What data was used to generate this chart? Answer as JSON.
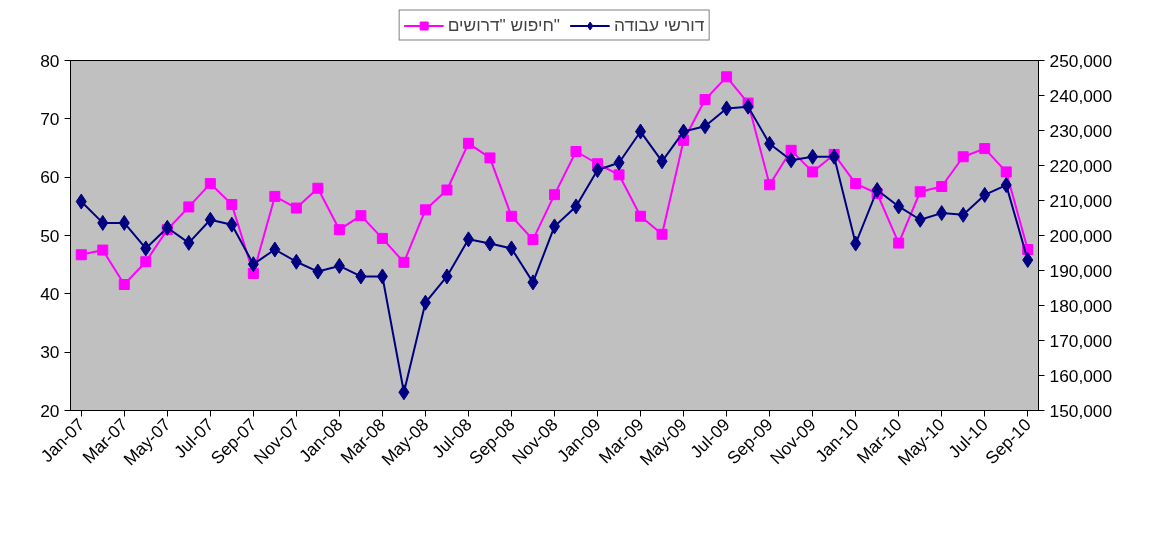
{
  "chart_data": {
    "type": "line",
    "categories": [
      "Jan-07",
      null,
      "Mar-07",
      null,
      "May-07",
      null,
      "Jul-07",
      null,
      "Sep-07",
      null,
      "Nov-07",
      null,
      "Jan-08",
      null,
      "Mar-08",
      null,
      "May-08",
      null,
      "Jul-08",
      null,
      "Sep-08",
      null,
      "Nov-08",
      null,
      "Jan-09",
      null,
      "Mar-09",
      null,
      "May-09",
      null,
      "Jul-09",
      null,
      "Sep-09",
      null,
      "Nov-09",
      null,
      "Jan-10",
      null,
      "Mar-10",
      null,
      "May-10",
      null,
      "Jul-10",
      null,
      "Sep-10"
    ],
    "series": [
      {
        "name": "חיפוש \"דרושים\"",
        "color": "#ff00ff",
        "marker": "square",
        "axis": "y",
        "values": [
          46.7,
          47.5,
          41.6,
          45.5,
          51.0,
          54.9,
          58.9,
          55.3,
          43.5,
          56.7,
          54.7,
          58.1,
          51.0,
          53.4,
          49.5,
          45.4,
          54.4,
          57.8,
          65.8,
          63.3,
          53.3,
          49.3,
          57.0,
          64.4,
          62.3,
          60.4,
          53.3,
          50.2,
          66.3,
          73.3,
          77.2,
          72.7,
          58.7,
          64.6,
          60.9,
          63.9,
          58.9,
          57.2,
          48.7,
          57.5,
          58.4,
          63.5,
          64.9,
          60.9,
          47.6
        ]
      },
      {
        "name": "דורשי עבודה",
        "color": "#000080",
        "marker": "diamond",
        "axis": "y2",
        "values": [
          209700,
          203600,
          203600,
          196300,
          202200,
          197900,
          204500,
          203100,
          191800,
          196000,
          192500,
          189700,
          191300,
          188300,
          188300,
          155200,
          180800,
          188300,
          198900,
          197700,
          196300,
          186600,
          202600,
          208300,
          218700,
          220800,
          229700,
          221200,
          229700,
          231200,
          236300,
          236800,
          226200,
          221500,
          222500,
          222500,
          197700,
          213000,
          208300,
          204500,
          206400,
          205900,
          211600,
          214400,
          193000
        ]
      }
    ],
    "ylim": [
      20,
      80
    ],
    "yticks": [
      20,
      30,
      40,
      50,
      60,
      70,
      80
    ],
    "y2lim": [
      150000,
      250000
    ],
    "y2ticks": [
      {
        "value": 150000,
        "label": "150,000"
      },
      {
        "value": 160000,
        "label": "160,000"
      },
      {
        "value": 170000,
        "label": "170,000"
      },
      {
        "value": 180000,
        "label": "180,000"
      },
      {
        "value": 190000,
        "label": "190,000"
      },
      {
        "value": 200000,
        "label": "200,000"
      },
      {
        "value": 210000,
        "label": "210,000"
      },
      {
        "value": 220000,
        "label": "220,000"
      },
      {
        "value": 230000,
        "label": "230,000"
      },
      {
        "value": 240000,
        "label": "240,000"
      },
      {
        "value": 250000,
        "label": "250,000"
      }
    ],
    "legend": "top",
    "grid": false,
    "line_style": "solid"
  }
}
